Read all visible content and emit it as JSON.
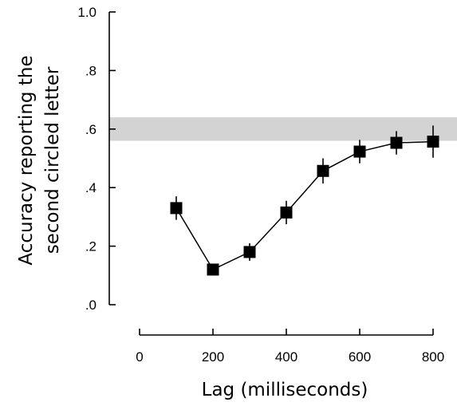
{
  "chart_data": {
    "type": "line",
    "xlabel": "Lag (milliseconds)",
    "ylabel_lines": [
      "Accuracy reporting the",
      "second circled letter"
    ],
    "xlim": [
      0,
      800
    ],
    "ylim": [
      0,
      1.0
    ],
    "x_ticks": [
      0,
      200,
      400,
      600,
      800
    ],
    "x_tick_labels": [
      "0",
      "200",
      "400",
      "600",
      "800"
    ],
    "y_ticks": [
      0,
      0.2,
      0.4,
      0.6,
      0.8,
      1.0
    ],
    "y_tick_labels": [
      ".0",
      ".2",
      ".4",
      ".6",
      ".8",
      "1.0"
    ],
    "grid": false,
    "reference_band": {
      "low": 0.56,
      "high": 0.64,
      "color": "#d3d3d3"
    },
    "series": [
      {
        "x": [
          100,
          200,
          300,
          400,
          500,
          600,
          700,
          800
        ],
        "y": [
          0.33,
          0.12,
          0.18,
          0.315,
          0.457,
          0.523,
          0.553,
          0.557
        ],
        "error": [
          0.04,
          0.015,
          0.03,
          0.04,
          0.043,
          0.04,
          0.04,
          0.055
        ],
        "marker": "square",
        "color": "#000000"
      }
    ]
  }
}
